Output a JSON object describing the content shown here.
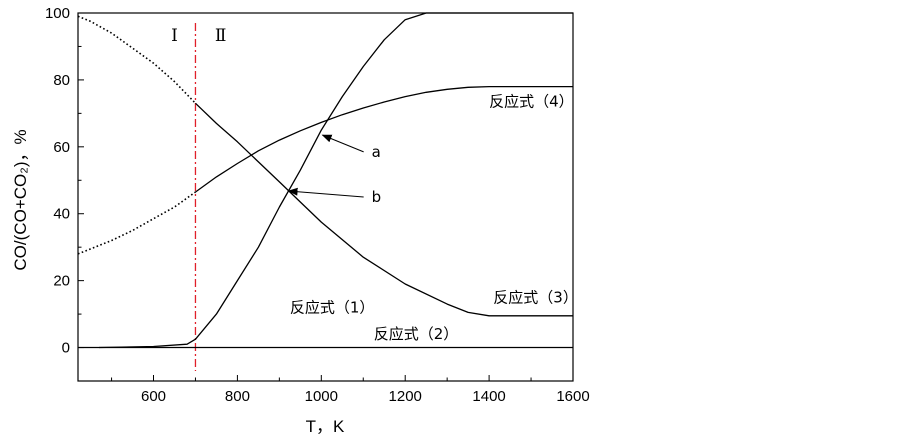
{
  "chart_data": {
    "type": "line",
    "xlabel": "T，K",
    "ylabel": "CO/(CO+CO₂)，%",
    "xlim": [
      420,
      1600
    ],
    "ylim": [
      -10,
      100
    ],
    "xticks": [
      600,
      800,
      1000,
      1200,
      1400,
      1600
    ],
    "yticks": [
      0,
      20,
      40,
      60,
      80,
      100
    ],
    "grid": false,
    "regions": [
      {
        "label": "Ⅰ",
        "x": 650
      },
      {
        "label": "Ⅱ",
        "x": 760
      }
    ],
    "divider": {
      "x": 700,
      "color": "#e0202a"
    },
    "series": [
      {
        "name": "反应式（1）",
        "label_x": 925,
        "label_y": 10.5,
        "style": "solid",
        "x": [
          470,
          600,
          680,
          700,
          750,
          800,
          850,
          900,
          950,
          1000,
          1050,
          1100,
          1150,
          1200,
          1250,
          1300,
          1400,
          1600
        ],
        "y": [
          0,
          0.3,
          1,
          2.5,
          10,
          20,
          30,
          42,
          53,
          65,
          75,
          84,
          92,
          98,
          100,
          100,
          100,
          100
        ]
      },
      {
        "name": "反应式（2）",
        "label_x": 1125,
        "label_y": 2.5,
        "style": "solid",
        "x": [
          420,
          1600
        ],
        "y": [
          0,
          0
        ]
      },
      {
        "name": "反应式（3）",
        "label_x": 1410,
        "label_y": 13.5,
        "style": "solid",
        "x": [
          700,
          750,
          800,
          850,
          900,
          950,
          1000,
          1100,
          1200,
          1300,
          1350,
          1400,
          1600
        ],
        "y": [
          73,
          67,
          61.5,
          55.5,
          49.5,
          43.5,
          37.5,
          27,
          19,
          13,
          10.5,
          9.5,
          9.5
        ]
      },
      {
        "name": "",
        "style": "dotted",
        "x": [
          420,
          450,
          500,
          550,
          600,
          650,
          700
        ],
        "y": [
          99,
          97.5,
          94,
          89.5,
          85,
          79.5,
          73
        ]
      },
      {
        "name": "反应式（4）",
        "label_x": 1400,
        "label_y": 72,
        "style": "solid",
        "x": [
          700,
          750,
          800,
          850,
          900,
          950,
          1000,
          1050,
          1100,
          1150,
          1200,
          1250,
          1300,
          1350,
          1400,
          1600
        ],
        "y": [
          46.5,
          51,
          55,
          58.8,
          62,
          64.8,
          67.3,
          69.6,
          71.6,
          73.4,
          75,
          76.3,
          77.2,
          77.8,
          78,
          78
        ]
      },
      {
        "name": "",
        "style": "dotted",
        "x": [
          420,
          450,
          500,
          550,
          600,
          650,
          700
        ],
        "y": [
          28,
          29.5,
          32,
          35,
          38.5,
          42,
          46.5
        ]
      }
    ],
    "annotations": [
      {
        "text": "a",
        "text_x": 1120,
        "text_y": 57,
        "target_x": 1003,
        "target_y": 63.5
      },
      {
        "text": "b",
        "text_x": 1120,
        "text_y": 43.5,
        "target_x": 922,
        "target_y": 46.8
      }
    ]
  }
}
